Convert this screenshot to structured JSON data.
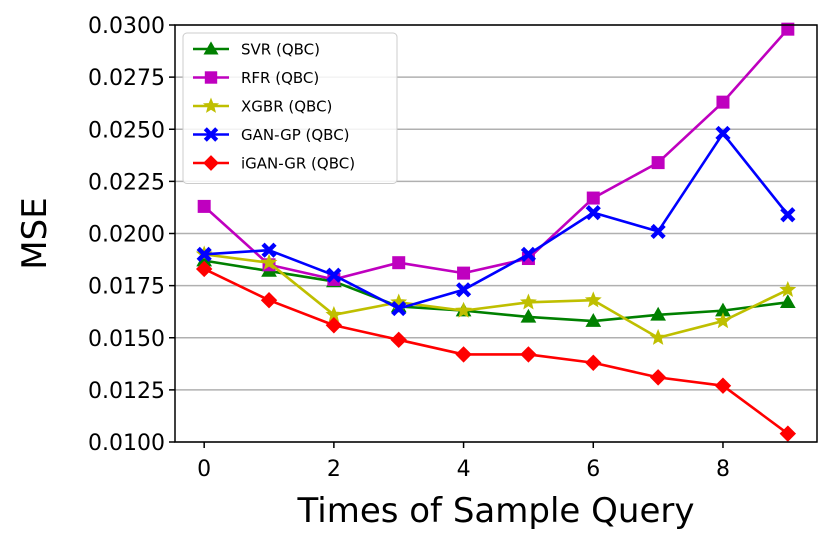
{
  "chart_data": {
    "type": "line",
    "xlabel": "Times of Sample Query",
    "ylabel": "MSE",
    "xlim": [
      -0.45,
      9.45
    ],
    "ylim": [
      0.01,
      0.03
    ],
    "x": [
      0,
      1,
      2,
      3,
      4,
      5,
      6,
      7,
      8,
      9
    ],
    "xticks": [
      0,
      2,
      4,
      6,
      8
    ],
    "xtick_labels": [
      "0",
      "2",
      "4",
      "6",
      "8"
    ],
    "yticks": [
      0.01,
      0.0125,
      0.015,
      0.0175,
      0.02,
      0.0225,
      0.025,
      0.0275,
      0.03
    ],
    "ytick_labels": [
      "0.0100",
      "0.0125",
      "0.0150",
      "0.0175",
      "0.0200",
      "0.0225",
      "0.0250",
      "0.0275",
      "0.0300"
    ],
    "grid": "horizontal",
    "legend_position": "top-left",
    "series": [
      {
        "name": "SVR (QBC)",
        "color": "#008000",
        "marker": "triangle",
        "values": [
          0.0187,
          0.0182,
          0.0177,
          0.0165,
          0.0163,
          0.016,
          0.0158,
          0.0161,
          0.0163,
          0.0167
        ]
      },
      {
        "name": "RFR (QBC)",
        "color": "#bf00bf",
        "marker": "square",
        "values": [
          0.0213,
          0.0185,
          0.0178,
          0.0186,
          0.0181,
          0.0188,
          0.0217,
          0.0234,
          0.0263,
          0.0298
        ]
      },
      {
        "name": "XGBR (QBC)",
        "color": "#bfbf00",
        "marker": "star",
        "values": [
          0.019,
          0.0186,
          0.0161,
          0.0167,
          0.0163,
          0.0167,
          0.0168,
          0.015,
          0.0158,
          0.0173
        ]
      },
      {
        "name": "GAN-GP (QBC)",
        "color": "#0000ff",
        "marker": "x",
        "values": [
          0.019,
          0.0192,
          0.018,
          0.0164,
          0.0173,
          0.019,
          0.021,
          0.0201,
          0.0248,
          0.0209
        ]
      },
      {
        "name": "iGAN-GR (QBC)",
        "color": "#ff0000",
        "marker": "diamond",
        "values": [
          0.0183,
          0.0168,
          0.0156,
          0.0149,
          0.0142,
          0.0142,
          0.0138,
          0.0131,
          0.0127,
          0.0104
        ]
      }
    ]
  }
}
